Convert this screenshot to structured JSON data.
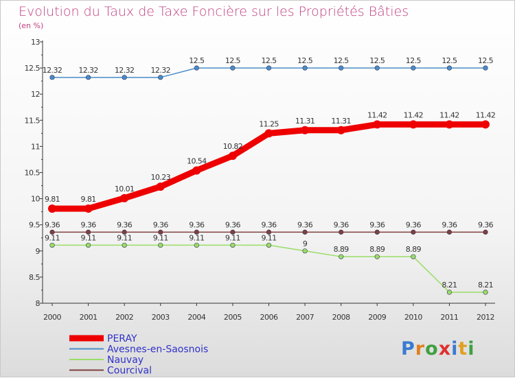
{
  "chart_data": {
    "type": "line",
    "title": "Evolution du Taux de Taxe Foncière sur les Propriétés Bâties",
    "ylabel": "(en %)",
    "xlabel": "",
    "ylim": [
      8,
      13
    ],
    "y_ticks": [
      "8",
      "8.5",
      "9",
      "9.5",
      "10",
      "10.5",
      "11",
      "11.5",
      "12",
      "12.5",
      "13"
    ],
    "y_tick_values": [
      8,
      8.5,
      9,
      9.5,
      10,
      10.5,
      11,
      11.5,
      12,
      12.5,
      13
    ],
    "x": [
      "2000",
      "2001",
      "2002",
      "2003",
      "2004",
      "2005",
      "2006",
      "2007",
      "2008",
      "2009",
      "2010",
      "2011",
      "2012"
    ],
    "series": [
      {
        "name": "Avesnes-en-Saosnois",
        "color": "#4a8cc8",
        "values": [
          12.32,
          12.32,
          12.32,
          12.32,
          12.5,
          12.5,
          12.5,
          12.5,
          12.5,
          12.5,
          12.5,
          12.5,
          12.5
        ],
        "labels": [
          "12.32",
          "12.32",
          "12.32",
          "12.32",
          "12.5",
          "12.5",
          "12.5",
          "12.5",
          "12.5",
          "12.5",
          "12.5",
          "12.5",
          "12.5"
        ]
      },
      {
        "name": "Nauvay",
        "color": "#99dd66",
        "values": [
          9.11,
          9.11,
          9.11,
          9.11,
          9.11,
          9.11,
          9.11,
          9.0,
          8.89,
          8.89,
          8.89,
          8.21,
          8.21
        ],
        "labels": [
          "9.11",
          "9.11",
          "9.11",
          "9.11",
          "9.11",
          "9.11",
          "9.11",
          "9",
          "8.89",
          "8.89",
          "8.89",
          "8.21",
          "8.21"
        ]
      },
      {
        "name": "Courcival",
        "color": "#804040",
        "values": [
          9.36,
          9.36,
          9.36,
          9.36,
          9.36,
          9.36,
          9.36,
          9.36,
          9.36,
          9.36,
          9.36,
          9.36,
          9.36
        ],
        "labels": [
          "9.36",
          "9.36",
          "9.36",
          "9.36",
          "9.36",
          "9.36",
          "9.36",
          "9.36",
          "9.36",
          "9.36",
          "9.36",
          "9.36",
          "9.36"
        ]
      },
      {
        "name": "PERAY",
        "color": "#ee0000",
        "values": [
          9.81,
          9.81,
          10.01,
          10.23,
          10.54,
          10.82,
          11.25,
          11.31,
          11.31,
          11.42,
          11.42,
          11.42,
          11.42
        ],
        "labels": [
          "9.81",
          "9.81",
          "10.01",
          "10.23",
          "10.54",
          "10.82",
          "11.25",
          "11.31",
          "11.31",
          "11.42",
          "11.42",
          "11.42",
          "11.42"
        ]
      }
    ],
    "legend": [
      "PERAY",
      "Avesnes-en-Saosnois",
      "Nauvay",
      "Courcival"
    ],
    "legend_colors": [
      "#ee0000",
      "#4a8cc8",
      "#99dd66",
      "#804040"
    ],
    "grid": false
  },
  "logo": {
    "letters": [
      "P",
      "r",
      "o",
      "x",
      "i",
      "t",
      "i"
    ],
    "colors": [
      "#3a7ad0",
      "#e08020",
      "#40a040",
      "#e03030",
      "#3a7ad0",
      "#e0a020",
      "#40a040"
    ]
  }
}
